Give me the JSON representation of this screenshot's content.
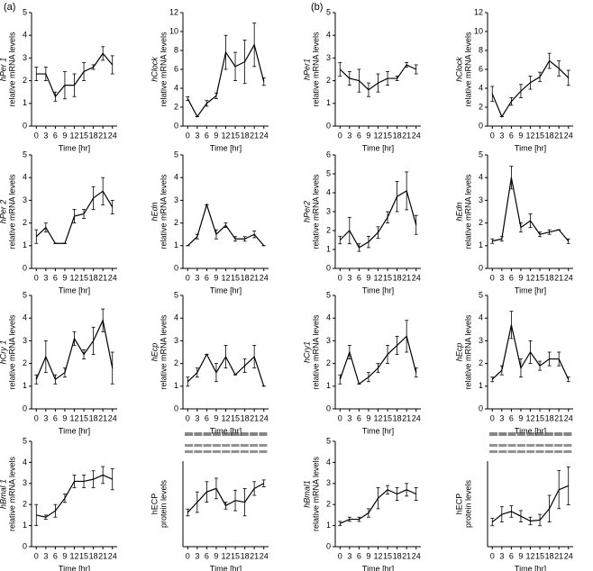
{
  "panel_labels": [
    "(a)",
    "(b)"
  ],
  "chart_data": [
    {
      "type": "line",
      "ylabel": "hPer 1",
      "ylabel2": "relative mRNA levels",
      "ylabel_style": "italic",
      "xlabel": "Time [hr]",
      "x": [
        0,
        3,
        6,
        9,
        12,
        15,
        18,
        21,
        24
      ],
      "xlim": [
        -1.5,
        25.5
      ],
      "xticks": [
        0,
        3,
        6,
        9,
        12,
        15,
        18,
        21,
        24
      ],
      "ylim": [
        0,
        5
      ],
      "yticks": [
        0,
        1,
        2,
        3,
        4,
        5
      ],
      "color": "#000000",
      "values": [
        2.3,
        2.3,
        1.3,
        1.8,
        1.8,
        2.4,
        2.6,
        3.2,
        2.7
      ],
      "errors": [
        0.3,
        0.3,
        0.2,
        0.6,
        0.5,
        0.4,
        0.1,
        0.3,
        0.4
      ]
    },
    {
      "type": "line",
      "ylabel": "hClock",
      "ylabel2": "relative mRNA levels",
      "ylabel_style": "italic",
      "xlabel": "Time [hr]",
      "x": [
        0,
        3,
        6,
        9,
        12,
        15,
        18,
        21,
        24
      ],
      "xlim": [
        -1.5,
        25.5
      ],
      "xticks": [
        0,
        3,
        6,
        9,
        12,
        15,
        18,
        21,
        24
      ],
      "ylim": [
        0,
        12
      ],
      "yticks": [
        0,
        2,
        4,
        6,
        8,
        10,
        12
      ],
      "color": "#000000",
      "values": [
        2.9,
        1.0,
        2.4,
        3.2,
        7.8,
        6.3,
        6.8,
        8.6,
        4.7
      ],
      "errors": [
        0.2,
        0,
        0.3,
        0.3,
        1.8,
        1.5,
        2.3,
        2.3,
        0.4
      ]
    },
    {
      "type": "line",
      "ylabel": "hPer1",
      "ylabel2": "relative mRNA levels",
      "ylabel_style": "italic",
      "xlabel": "Time [hr]",
      "x": [
        0,
        3,
        6,
        9,
        12,
        15,
        18,
        21,
        24
      ],
      "xlim": [
        -1.5,
        25.5
      ],
      "xticks": [
        0,
        3,
        6,
        9,
        12,
        15,
        18,
        21,
        24
      ],
      "ylim": [
        0,
        5
      ],
      "yticks": [
        0,
        1,
        2,
        3,
        4,
        5
      ],
      "color": "#000000",
      "values": [
        2.5,
        2.1,
        2.0,
        1.6,
        1.9,
        2.1,
        2.1,
        2.7,
        2.5
      ],
      "errors": [
        0.3,
        0.3,
        0.5,
        0.3,
        0.4,
        0.3,
        0.1,
        0.1,
        0.2
      ]
    },
    {
      "type": "line",
      "ylabel": "hClock",
      "ylabel2": "relative mRNA levels",
      "ylabel_style": "italic",
      "xlabel": "Time [hr]",
      "x": [
        0,
        3,
        6,
        9,
        12,
        15,
        18,
        21,
        24
      ],
      "xlim": [
        -1.5,
        25.5
      ],
      "xticks": [
        0,
        3,
        6,
        9,
        12,
        15,
        18,
        21,
        24
      ],
      "ylim": [
        0,
        12
      ],
      "yticks": [
        0,
        2,
        4,
        6,
        8,
        10,
        12
      ],
      "color": "#000000",
      "values": [
        3.4,
        1.0,
        2.6,
        3.7,
        4.6,
        5.2,
        6.9,
        6.1,
        5.1
      ],
      "errors": [
        0.8,
        0,
        0.4,
        0.7,
        0.7,
        0.5,
        0.8,
        0.8,
        0.8
      ]
    },
    {
      "type": "line",
      "ylabel": "hPer 2",
      "ylabel2": "relative mRNA levels",
      "ylabel_style": "italic",
      "xlabel": "Time [hr]",
      "x": [
        0,
        3,
        6,
        9,
        12,
        15,
        18,
        21,
        24
      ],
      "xlim": [
        -1.5,
        25.5
      ],
      "xticks": [
        0,
        3,
        6,
        9,
        12,
        15,
        18,
        21,
        24
      ],
      "ylim": [
        0,
        5
      ],
      "yticks": [
        0,
        1,
        2,
        3,
        4,
        5
      ],
      "color": "#000000",
      "values": [
        1.4,
        1.8,
        1.1,
        1.1,
        2.3,
        2.4,
        3.1,
        3.4,
        2.7
      ],
      "errors": [
        0.3,
        0.2,
        0,
        0,
        0.3,
        0.2,
        0.5,
        0.6,
        0.3
      ]
    },
    {
      "type": "line",
      "ylabel": "hEdn",
      "ylabel2": "relative mRNA levels",
      "ylabel_style": "italic",
      "xlabel": "Time [hr]",
      "x": [
        0,
        3,
        6,
        9,
        12,
        15,
        18,
        21,
        24
      ],
      "xlim": [
        -1.5,
        25.5
      ],
      "xticks": [
        0,
        3,
        6,
        9,
        12,
        15,
        18,
        21,
        24
      ],
      "ylim": [
        0,
        5
      ],
      "yticks": [
        0,
        1,
        2,
        3,
        4,
        5
      ],
      "color": "#000000",
      "values": [
        1.0,
        1.4,
        2.8,
        1.5,
        1.9,
        1.3,
        1.3,
        1.5,
        1.0
      ],
      "errors": [
        0,
        0.1,
        0,
        0.2,
        0.1,
        0.1,
        0.1,
        0.15,
        0
      ]
    },
    {
      "type": "line",
      "ylabel": "hPer2",
      "ylabel2": "relative mRNA levels",
      "ylabel_style": "italic",
      "xlabel": "Time [hr]",
      "x": [
        0,
        3,
        6,
        9,
        12,
        15,
        18,
        21,
        24
      ],
      "xlim": [
        -1.5,
        25.5
      ],
      "xticks": [
        0,
        3,
        6,
        9,
        12,
        15,
        18,
        21,
        24
      ],
      "ylim": [
        0,
        6
      ],
      "yticks": [
        0,
        1,
        2,
        3,
        4,
        5,
        6
      ],
      "color": "#000000",
      "values": [
        1.5,
        2.0,
        1.1,
        1.4,
        1.9,
        2.7,
        3.8,
        4.1,
        2.3
      ],
      "errors": [
        0.2,
        0.7,
        0.2,
        0.3,
        0.3,
        0.3,
        0.8,
        1.0,
        0.5
      ]
    },
    {
      "type": "line",
      "ylabel": "hEdn",
      "ylabel2": "relative mRNA levels",
      "ylabel_style": "italic",
      "xlabel": "Time [hr]",
      "x": [
        0,
        3,
        6,
        9,
        12,
        15,
        18,
        21,
        24
      ],
      "xlim": [
        -1.5,
        25.5
      ],
      "xticks": [
        0,
        3,
        6,
        9,
        12,
        15,
        18,
        21,
        24
      ],
      "ylim": [
        0,
        5
      ],
      "yticks": [
        0,
        1,
        2,
        3,
        4,
        5
      ],
      "color": "#000000",
      "values": [
        1.2,
        1.3,
        4.0,
        1.8,
        2.1,
        1.5,
        1.6,
        1.7,
        1.2
      ],
      "errors": [
        0.1,
        0.1,
        0.5,
        0.2,
        0.3,
        0.1,
        0.1,
        0,
        0.1
      ]
    },
    {
      "type": "line",
      "ylabel": "hCry 1",
      "ylabel2": "relative mRNA levels",
      "ylabel_style": "italic",
      "xlabel": "Time [hr]",
      "x": [
        0,
        3,
        6,
        9,
        12,
        15,
        18,
        21,
        24
      ],
      "xlim": [
        -1.5,
        25.5
      ],
      "xticks": [
        0,
        3,
        6,
        9,
        12,
        15,
        18,
        21,
        24
      ],
      "ylim": [
        0,
        5
      ],
      "yticks": [
        0,
        1,
        2,
        3,
        4,
        5
      ],
      "color": "#000000",
      "values": [
        1.3,
        2.3,
        1.3,
        1.6,
        3.1,
        2.4,
        3.0,
        3.9,
        1.8
      ],
      "errors": [
        0.2,
        0.7,
        0.2,
        0.2,
        0.3,
        0.2,
        0.6,
        0.5,
        0.7
      ]
    },
    {
      "type": "line",
      "ylabel": "hEcp",
      "ylabel2": "relative mRNA levels",
      "ylabel_style": "italic",
      "xlabel": "Time [hr]",
      "x": [
        0,
        3,
        6,
        9,
        12,
        15,
        18,
        21,
        24
      ],
      "xlim": [
        -1.5,
        25.5
      ],
      "xticks": [
        0,
        3,
        6,
        9,
        12,
        15,
        18,
        21,
        24
      ],
      "ylim": [
        0,
        5
      ],
      "yticks": [
        0,
        1,
        2,
        3,
        4,
        5
      ],
      "color": "#000000",
      "values": [
        1.2,
        1.6,
        2.4,
        1.6,
        2.3,
        1.5,
        1.9,
        2.3,
        1.0
      ],
      "errors": [
        0.2,
        0.2,
        0,
        0.4,
        0.5,
        0,
        0.3,
        0.5,
        0
      ]
    },
    {
      "type": "line",
      "ylabel": "hCry1",
      "ylabel2": "relative mRNA levels",
      "ylabel_style": "italic",
      "xlabel": "Time [hr]",
      "x": [
        0,
        3,
        6,
        9,
        12,
        15,
        18,
        21,
        24
      ],
      "xlim": [
        -1.5,
        25.5
      ],
      "xticks": [
        0,
        3,
        6,
        9,
        12,
        15,
        18,
        21,
        24
      ],
      "ylim": [
        0,
        5
      ],
      "yticks": [
        0,
        1,
        2,
        3,
        4,
        5
      ],
      "color": "#000000",
      "values": [
        1.3,
        2.5,
        1.1,
        1.4,
        1.8,
        2.4,
        2.8,
        3.2,
        1.6
      ],
      "errors": [
        0.2,
        0.3,
        0,
        0.2,
        0.2,
        0.4,
        0.4,
        0.7,
        0.2
      ]
    },
    {
      "type": "line",
      "ylabel": "hEcp",
      "ylabel2": "relative mRNA levels",
      "ylabel_style": "italic",
      "xlabel": "Time [hr]",
      "x": [
        0,
        3,
        6,
        9,
        12,
        15,
        18,
        21,
        24
      ],
      "xlim": [
        -1.5,
        25.5
      ],
      "xticks": [
        0,
        3,
        6,
        9,
        12,
        15,
        18,
        21,
        24
      ],
      "ylim": [
        0,
        5
      ],
      "yticks": [
        0,
        1,
        2,
        3,
        4,
        5
      ],
      "color": "#000000",
      "values": [
        1.3,
        1.7,
        3.7,
        1.8,
        2.5,
        1.9,
        2.2,
        2.2,
        1.3
      ],
      "errors": [
        0.1,
        0.2,
        0.6,
        0.4,
        0.5,
        0.2,
        0.3,
        0.3,
        0.1
      ]
    },
    {
      "type": "line",
      "ylabel": "hBmal 1",
      "ylabel2": "relative mRNA levels",
      "ylabel_style": "italic",
      "xlabel": "Time [hr]",
      "x": [
        0,
        3,
        6,
        9,
        12,
        15,
        18,
        21,
        24
      ],
      "xlim": [
        -1.5,
        25.5
      ],
      "xticks": [
        0,
        3,
        6,
        9,
        12,
        15,
        18,
        21,
        24
      ],
      "ylim": [
        0,
        5
      ],
      "yticks": [
        0,
        1,
        2,
        3,
        4,
        5
      ],
      "color": "#000000",
      "values": [
        1.5,
        1.4,
        1.7,
        2.3,
        3.1,
        3.1,
        3.2,
        3.4,
        3.2
      ],
      "errors": [
        0.5,
        0.1,
        0.3,
        0.2,
        0.3,
        0.3,
        0.4,
        0.4,
        0.5
      ]
    },
    {
      "type": "line",
      "ylabel": "hECP",
      "ylabel2": "protein levels",
      "ylabel_style": "normal",
      "blot": true,
      "xlabel": "Time [hr]",
      "x": [
        0,
        3,
        6,
        9,
        12,
        15,
        18,
        21,
        24
      ],
      "xlim": [
        -1.5,
        25.5
      ],
      "xticks": [
        0,
        3,
        6,
        9,
        12,
        15,
        18,
        21,
        24
      ],
      "ylim": [
        0,
        2.5
      ],
      "color": "#000000",
      "values": [
        1.0,
        1.3,
        1.6,
        1.7,
        1.2,
        1.35,
        1.3,
        1.7,
        1.85
      ],
      "errors": [
        0.1,
        0.3,
        0.3,
        0.3,
        0.1,
        0.3,
        0.4,
        0.2,
        0.1
      ]
    },
    {
      "type": "line",
      "ylabel": "hBmal1",
      "ylabel2": "relative mRNA levels",
      "ylabel_style": "italic",
      "xlabel": "Time [hr]",
      "x": [
        0,
        3,
        6,
        9,
        12,
        15,
        18,
        21,
        24
      ],
      "xlim": [
        -1.5,
        25.5
      ],
      "xticks": [
        0,
        3,
        6,
        9,
        12,
        15,
        18,
        21,
        24
      ],
      "ylim": [
        0,
        5
      ],
      "yticks": [
        0,
        1,
        2,
        3,
        4,
        5
      ],
      "color": "#000000",
      "values": [
        1.1,
        1.3,
        1.3,
        1.6,
        2.3,
        2.7,
        2.5,
        2.7,
        2.5
      ],
      "errors": [
        0.1,
        0.1,
        0.1,
        0.2,
        0.5,
        0.2,
        0.3,
        0.3,
        0.3
      ]
    },
    {
      "type": "line",
      "ylabel": "hECP",
      "ylabel2": "protein levels",
      "ylabel_style": "normal",
      "blot": true,
      "xlabel": "Time [hr]",
      "x": [
        0,
        3,
        6,
        9,
        12,
        15,
        18,
        21,
        24
      ],
      "xlim": [
        -1.5,
        25.5
      ],
      "xticks": [
        0,
        3,
        6,
        9,
        12,
        15,
        18,
        21,
        24
      ],
      "ylim": [
        0,
        4.5
      ],
      "color": "#000000",
      "values": [
        1.3,
        1.7,
        1.85,
        1.6,
        1.35,
        1.4,
        2.0,
        3.0,
        3.2
      ],
      "errors": [
        0.2,
        0.4,
        0.3,
        0.3,
        0.2,
        0.3,
        0.7,
        1.0,
        1.0
      ]
    }
  ]
}
